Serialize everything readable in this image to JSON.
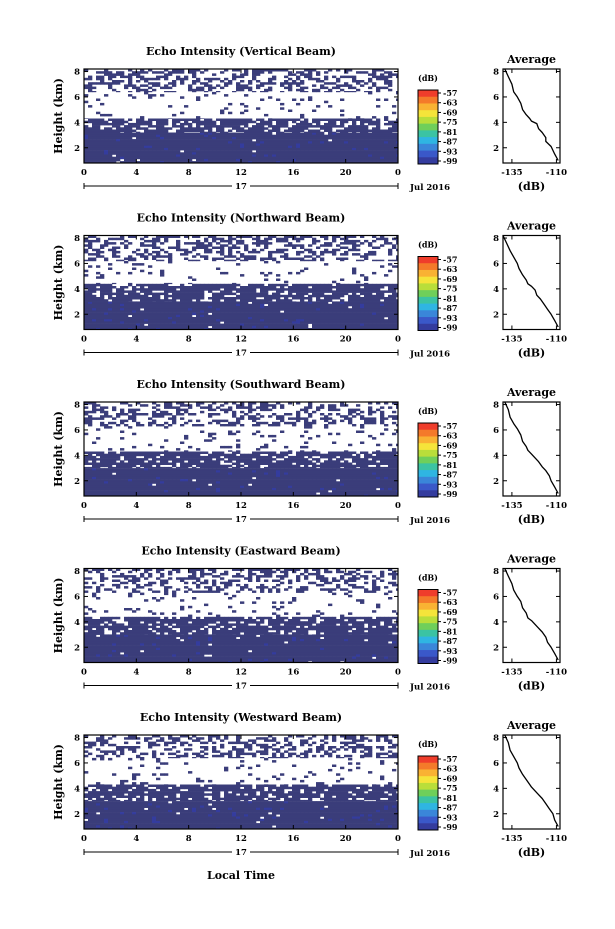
{
  "figure": {
    "x_axis_label": "Local Time",
    "date_label": "Jul 2016",
    "day_label": "17"
  },
  "chart_data": [
    {
      "type": "heatmap",
      "title": "Echo Intensity (Vertical Beam)",
      "xlabel": "",
      "ylabel": "Height (km)",
      "x_ticks": [
        "0",
        "4",
        "8",
        "12",
        "16",
        "20",
        "0"
      ],
      "y_ticks": [
        "2",
        "4",
        "6",
        "8"
      ],
      "xlim": [
        0,
        24
      ],
      "ylim": [
        0.8,
        8.2
      ],
      "colorbar": {
        "label": "(dB)",
        "ticks": [
          "-57",
          "-63",
          "-69",
          "-75",
          "-81",
          "-87",
          "-93",
          "-99"
        ],
        "colors": [
          "#ef3d2b",
          "#f47a2a",
          "#f9b233",
          "#f5e43a",
          "#b9de3a",
          "#6fcf5a",
          "#3bc3a3",
          "#2fb5e2",
          "#3a86d9",
          "#3a58c9",
          "#343c9e"
        ]
      },
      "background_color": "#3a3d7a",
      "layers": [
        {
          "from_km": 0.8,
          "to_km": 3.2,
          "coverage": "dense"
        },
        {
          "from_km": 3.2,
          "to_km": 4.3,
          "coverage": "mostly"
        },
        {
          "from_km": 4.3,
          "to_km": 6.4,
          "coverage": "sparse"
        },
        {
          "from_km": 6.4,
          "to_km": 8.2,
          "coverage": "patchy"
        }
      ]
    },
    {
      "type": "heatmap",
      "title": "Echo Intensity (Northward Beam)",
      "xlabel": "",
      "ylabel": "Height (km)",
      "x_ticks": [
        "0",
        "4",
        "8",
        "12",
        "16",
        "20",
        "0"
      ],
      "y_ticks": [
        "2",
        "4",
        "6",
        "8"
      ],
      "xlim": [
        0,
        24
      ],
      "ylim": [
        0.8,
        8.2
      ],
      "colorbar": {
        "label": "(dB)",
        "ticks": [
          "-57",
          "-63",
          "-69",
          "-75",
          "-81",
          "-87",
          "-93",
          "-99"
        ],
        "colors": [
          "#ef3d2b",
          "#f47a2a",
          "#f9b233",
          "#f5e43a",
          "#b9de3a",
          "#6fcf5a",
          "#3bc3a3",
          "#2fb5e2",
          "#3a86d9",
          "#3a58c9",
          "#343c9e"
        ]
      },
      "background_color": "#3a3d7a",
      "layers": [
        {
          "from_km": 0.8,
          "to_km": 3.0,
          "coverage": "dense"
        },
        {
          "from_km": 3.0,
          "to_km": 4.4,
          "coverage": "mostly"
        },
        {
          "from_km": 4.4,
          "to_km": 6.2,
          "coverage": "sparse"
        },
        {
          "from_km": 6.2,
          "to_km": 8.2,
          "coverage": "patchy"
        }
      ]
    },
    {
      "type": "heatmap",
      "title": "Echo Intensity (Southward Beam)",
      "xlabel": "",
      "ylabel": "Height (km)",
      "x_ticks": [
        "0",
        "4",
        "8",
        "12",
        "16",
        "20",
        "0"
      ],
      "y_ticks": [
        "2",
        "4",
        "6",
        "8"
      ],
      "xlim": [
        0,
        24
      ],
      "ylim": [
        0.8,
        8.2
      ],
      "colorbar": {
        "label": "(dB)",
        "ticks": [
          "-57",
          "-63",
          "-69",
          "-75",
          "-81",
          "-87",
          "-93",
          "-99"
        ],
        "colors": [
          "#ef3d2b",
          "#f47a2a",
          "#f9b233",
          "#f5e43a",
          "#b9de3a",
          "#6fcf5a",
          "#3bc3a3",
          "#2fb5e2",
          "#3a86d9",
          "#3a58c9",
          "#343c9e"
        ]
      },
      "background_color": "#3a3d7a",
      "layers": [
        {
          "from_km": 0.8,
          "to_km": 3.0,
          "coverage": "dense"
        },
        {
          "from_km": 3.0,
          "to_km": 4.3,
          "coverage": "mostly"
        },
        {
          "from_km": 4.3,
          "to_km": 6.3,
          "coverage": "sparse"
        },
        {
          "from_km": 6.3,
          "to_km": 8.2,
          "coverage": "patchy"
        }
      ]
    },
    {
      "type": "heatmap",
      "title": "Echo Intensity (Eastward Beam)",
      "xlabel": "",
      "ylabel": "Height (km)",
      "x_ticks": [
        "0",
        "4",
        "8",
        "12",
        "16",
        "20",
        "0"
      ],
      "y_ticks": [
        "2",
        "4",
        "6",
        "8"
      ],
      "xlim": [
        0,
        24
      ],
      "ylim": [
        0.8,
        8.2
      ],
      "colorbar": {
        "label": "(dB)",
        "ticks": [
          "-57",
          "-63",
          "-69",
          "-75",
          "-81",
          "-87",
          "-93",
          "-99"
        ],
        "colors": [
          "#ef3d2b",
          "#f47a2a",
          "#f9b233",
          "#f5e43a",
          "#b9de3a",
          "#6fcf5a",
          "#3bc3a3",
          "#2fb5e2",
          "#3a86d9",
          "#3a58c9",
          "#343c9e"
        ]
      },
      "background_color": "#3a3d7a",
      "layers": [
        {
          "from_km": 0.8,
          "to_km": 3.0,
          "coverage": "dense"
        },
        {
          "from_km": 3.0,
          "to_km": 4.4,
          "coverage": "mostly"
        },
        {
          "from_km": 4.4,
          "to_km": 6.3,
          "coverage": "sparse"
        },
        {
          "from_km": 6.3,
          "to_km": 8.2,
          "coverage": "patchy"
        }
      ]
    },
    {
      "type": "heatmap",
      "title": "Echo Intensity (Westward Beam)",
      "xlabel": "Local Time",
      "ylabel": "Height (km)",
      "x_ticks": [
        "0",
        "4",
        "8",
        "12",
        "16",
        "20",
        "0"
      ],
      "y_ticks": [
        "2",
        "4",
        "6",
        "8"
      ],
      "xlim": [
        0,
        24
      ],
      "ylim": [
        0.8,
        8.2
      ],
      "colorbar": {
        "label": "(dB)",
        "ticks": [
          "-57",
          "-63",
          "-69",
          "-75",
          "-81",
          "-87",
          "-93",
          "-99"
        ],
        "colors": [
          "#ef3d2b",
          "#f47a2a",
          "#f9b233",
          "#f5e43a",
          "#b9de3a",
          "#6fcf5a",
          "#3bc3a3",
          "#2fb5e2",
          "#3a86d9",
          "#3a58c9",
          "#343c9e"
        ]
      },
      "background_color": "#3a3d7a",
      "layers": [
        {
          "from_km": 0.8,
          "to_km": 3.0,
          "coverage": "dense"
        },
        {
          "from_km": 3.0,
          "to_km": 4.3,
          "coverage": "mostly"
        },
        {
          "from_km": 4.3,
          "to_km": 6.4,
          "coverage": "sparse"
        },
        {
          "from_km": 6.4,
          "to_km": 8.2,
          "coverage": "patchy"
        }
      ]
    },
    {
      "type": "line",
      "title": "Average",
      "xlabel": "(dB)",
      "ylabel": "",
      "x_ticks": [
        "-135",
        "-110"
      ],
      "y_ticks": [
        "2",
        "4",
        "6",
        "8"
      ],
      "xlim": [
        -140,
        -108
      ],
      "ylim": [
        0.8,
        8.2
      ],
      "x": [
        -139,
        -137,
        -135,
        -134,
        -132,
        -130,
        -129,
        -127,
        -125,
        -124,
        -121,
        -120,
        -118,
        -116,
        -116,
        -113,
        -111,
        -109
      ],
      "y": [
        8.2,
        7.6,
        7.0,
        6.4,
        6.0,
        5.5,
        5.0,
        4.6,
        4.3,
        4.1,
        3.9,
        3.5,
        3.2,
        2.8,
        2.5,
        2.1,
        1.5,
        1.0
      ]
    },
    {
      "type": "line",
      "title": "Average",
      "xlabel": "(dB)",
      "ylabel": "",
      "x_ticks": [
        "-135",
        "-110"
      ],
      "y_ticks": [
        "2",
        "4",
        "6",
        "8"
      ],
      "xlim": [
        -140,
        -108
      ],
      "ylim": [
        0.8,
        8.2
      ],
      "x": [
        -140,
        -138,
        -136,
        -134,
        -132,
        -131,
        -129,
        -127,
        -126,
        -124,
        -122,
        -121,
        -119,
        -117,
        -115,
        -113,
        -111,
        -109
      ],
      "y": [
        8.2,
        7.6,
        7.0,
        6.5,
        6.0,
        5.6,
        5.1,
        4.7,
        4.4,
        4.2,
        3.9,
        3.5,
        3.2,
        2.8,
        2.4,
        2.0,
        1.5,
        1.0
      ]
    },
    {
      "type": "line",
      "title": "Average",
      "xlabel": "(dB)",
      "ylabel": "",
      "x_ticks": [
        "-135",
        "-110"
      ],
      "y_ticks": [
        "2",
        "4",
        "6",
        "8"
      ],
      "xlim": [
        -140,
        -108
      ],
      "ylim": [
        0.8,
        8.2
      ],
      "x": [
        -139,
        -137,
        -136,
        -134,
        -132,
        -130,
        -129,
        -127,
        -126,
        -124,
        -122,
        -120,
        -118,
        -116,
        -114,
        -113,
        -111,
        -109
      ],
      "y": [
        8.2,
        7.6,
        7.0,
        6.5,
        6.1,
        5.6,
        5.1,
        4.7,
        4.4,
        4.1,
        3.8,
        3.5,
        3.1,
        2.8,
        2.4,
        2.0,
        1.5,
        1.0
      ]
    },
    {
      "type": "line",
      "title": "Average",
      "xlabel": "(dB)",
      "ylabel": "",
      "x_ticks": [
        "-135",
        "-110"
      ],
      "y_ticks": [
        "2",
        "4",
        "6",
        "8"
      ],
      "xlim": [
        -140,
        -108
      ],
      "ylim": [
        0.8,
        8.2
      ],
      "x": [
        -139,
        -137,
        -135,
        -134,
        -132,
        -130,
        -129,
        -127,
        -126,
        -124,
        -122,
        -120,
        -118,
        -116,
        -115,
        -113,
        -111,
        -109
      ],
      "y": [
        8.2,
        7.6,
        7.0,
        6.5,
        6.0,
        5.6,
        5.1,
        4.7,
        4.3,
        4.1,
        3.8,
        3.5,
        3.2,
        2.8,
        2.4,
        2.0,
        1.5,
        1.0
      ]
    },
    {
      "type": "line",
      "title": "Average",
      "xlabel": "(dB)",
      "ylabel": "",
      "x_ticks": [
        "-135",
        "-110"
      ],
      "y_ticks": [
        "2",
        "4",
        "6",
        "8"
      ],
      "xlim": [
        -140,
        -108
      ],
      "ylim": [
        0.8,
        8.2
      ],
      "x": [
        -139,
        -137,
        -136,
        -134,
        -132,
        -131,
        -129,
        -127,
        -125,
        -124,
        -122,
        -120,
        -118,
        -116,
        -114,
        -112,
        -111,
        -109
      ],
      "y": [
        8.2,
        7.6,
        7.0,
        6.5,
        6.0,
        5.6,
        5.1,
        4.7,
        4.3,
        4.1,
        3.8,
        3.5,
        3.2,
        2.8,
        2.4,
        2.0,
        1.5,
        1.0
      ]
    }
  ]
}
